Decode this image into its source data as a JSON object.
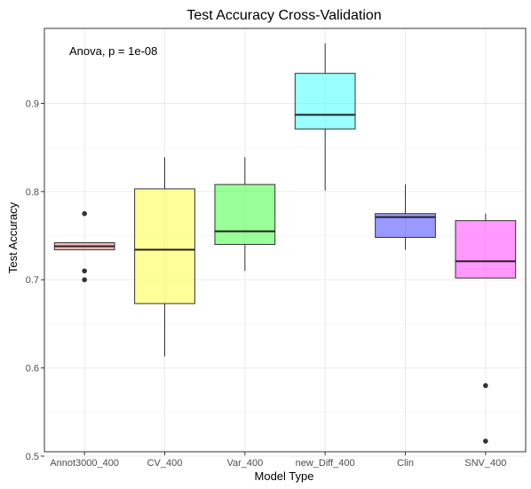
{
  "chart_data": {
    "type": "box",
    "title": "Test Accuracy Cross-Validation",
    "xlabel": "Model Type",
    "ylabel": "Test Accuracy",
    "annotation": "Anova, p = 1e-08",
    "ylim": [
      0.505,
      0.985
    ],
    "yticks": [
      0.5,
      0.6,
      0.7,
      0.8,
      0.9
    ],
    "ytick_labels": [
      "0.5",
      "0.6",
      "0.7",
      "0.8",
      "0.9"
    ],
    "grid": true,
    "categories": [
      "Annot3000_400",
      "CV_400",
      "Var_400",
      "new_Diff_400",
      "Clin",
      "SNV_400"
    ],
    "colors": [
      "#F8766D",
      "#FFFF33",
      "#33FF33",
      "#33FFFF",
      "#3333FF",
      "#FF33FF"
    ],
    "boxes": [
      {
        "name": "Annot3000_400",
        "whisker_low": 0.734,
        "q1": 0.734,
        "median": 0.738,
        "q3": 0.742,
        "whisker_high": 0.742,
        "outliers": [
          0.775,
          0.71,
          0.7
        ]
      },
      {
        "name": "CV_400",
        "whisker_low": 0.613,
        "q1": 0.673,
        "median": 0.734,
        "q3": 0.803,
        "whisker_high": 0.839,
        "outliers": []
      },
      {
        "name": "Var_400",
        "whisker_low": 0.71,
        "q1": 0.74,
        "median": 0.755,
        "q3": 0.808,
        "whisker_high": 0.839,
        "outliers": []
      },
      {
        "name": "new_Diff_400",
        "whisker_low": 0.801,
        "q1": 0.871,
        "median": 0.887,
        "q3": 0.934,
        "whisker_high": 0.968,
        "outliers": []
      },
      {
        "name": "Clin",
        "whisker_low": 0.734,
        "q1": 0.748,
        "median": 0.771,
        "q3": 0.775,
        "whisker_high": 0.808,
        "outliers": []
      },
      {
        "name": "SNV_400",
        "whisker_low": 0.702,
        "q1": 0.702,
        "median": 0.721,
        "q3": 0.767,
        "whisker_high": 0.775,
        "outliers": [
          0.58,
          0.517
        ]
      }
    ]
  }
}
